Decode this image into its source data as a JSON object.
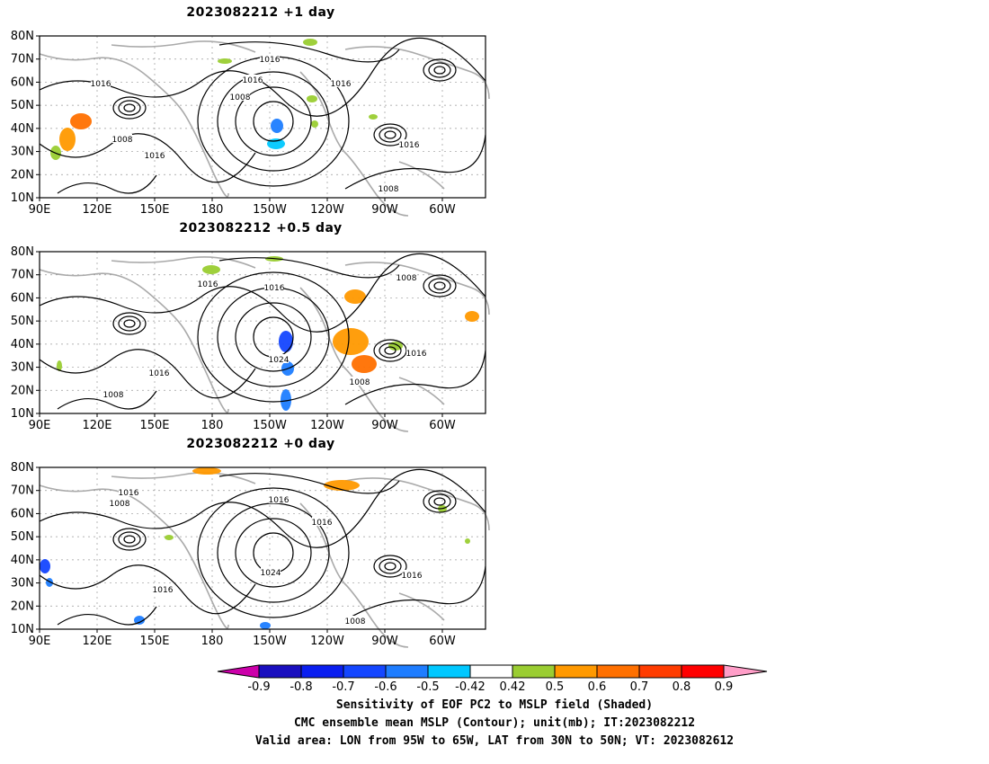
{
  "panels": [
    {
      "title": "2023082212  +1  day",
      "contour_labels": [
        "1016",
        "1016",
        "1016",
        "1008",
        "1016",
        "1008",
        "1016",
        "1016",
        "1008"
      ]
    },
    {
      "title": "2023082212  +0.5  day",
      "contour_labels": [
        "1016",
        "1016",
        "1008",
        "1024",
        "1016",
        "1008",
        "1016",
        "1008"
      ]
    },
    {
      "title": "2023082212  +0  day",
      "contour_labels": [
        "1016",
        "1008",
        "1016",
        "1016",
        "1024",
        "1016",
        "1016",
        "1008"
      ]
    }
  ],
  "lat_labels": [
    "80N",
    "70N",
    "60N",
    "50N",
    "40N",
    "30N",
    "20N",
    "10N"
  ],
  "lon_labels": [
    "90E",
    "120E",
    "150E",
    "180",
    "150W",
    "120W",
    "90W",
    "60W"
  ],
  "colorbar": {
    "ticks": [
      "-0.9",
      "-0.8",
      "-0.7",
      "-0.6",
      "-0.5",
      "-0.42",
      "0.42",
      "0.5",
      "0.6",
      "0.7",
      "0.8",
      "0.9"
    ],
    "colors": [
      "#1a0fbf",
      "#0a1ef0",
      "#1446ff",
      "#1e7dff",
      "#00c8ff",
      "#ffffff",
      "#9acd32",
      "#ff9900",
      "#ff7000",
      "#ff3c00",
      "#ff0000"
    ],
    "left_arrow": "#cc00aa",
    "right_arrow": "#ff9ec8"
  },
  "caption": {
    "line1": "Sensitivity of EOF PC2 to MSLP field (Shaded)",
    "line2": "CMC ensemble mean MSLP (Contour); unit(mb); IT:2023082212",
    "line3": "Valid area: LON from 95W to 65W, LAT from 30N to 50N; VT: 2023082612"
  }
}
